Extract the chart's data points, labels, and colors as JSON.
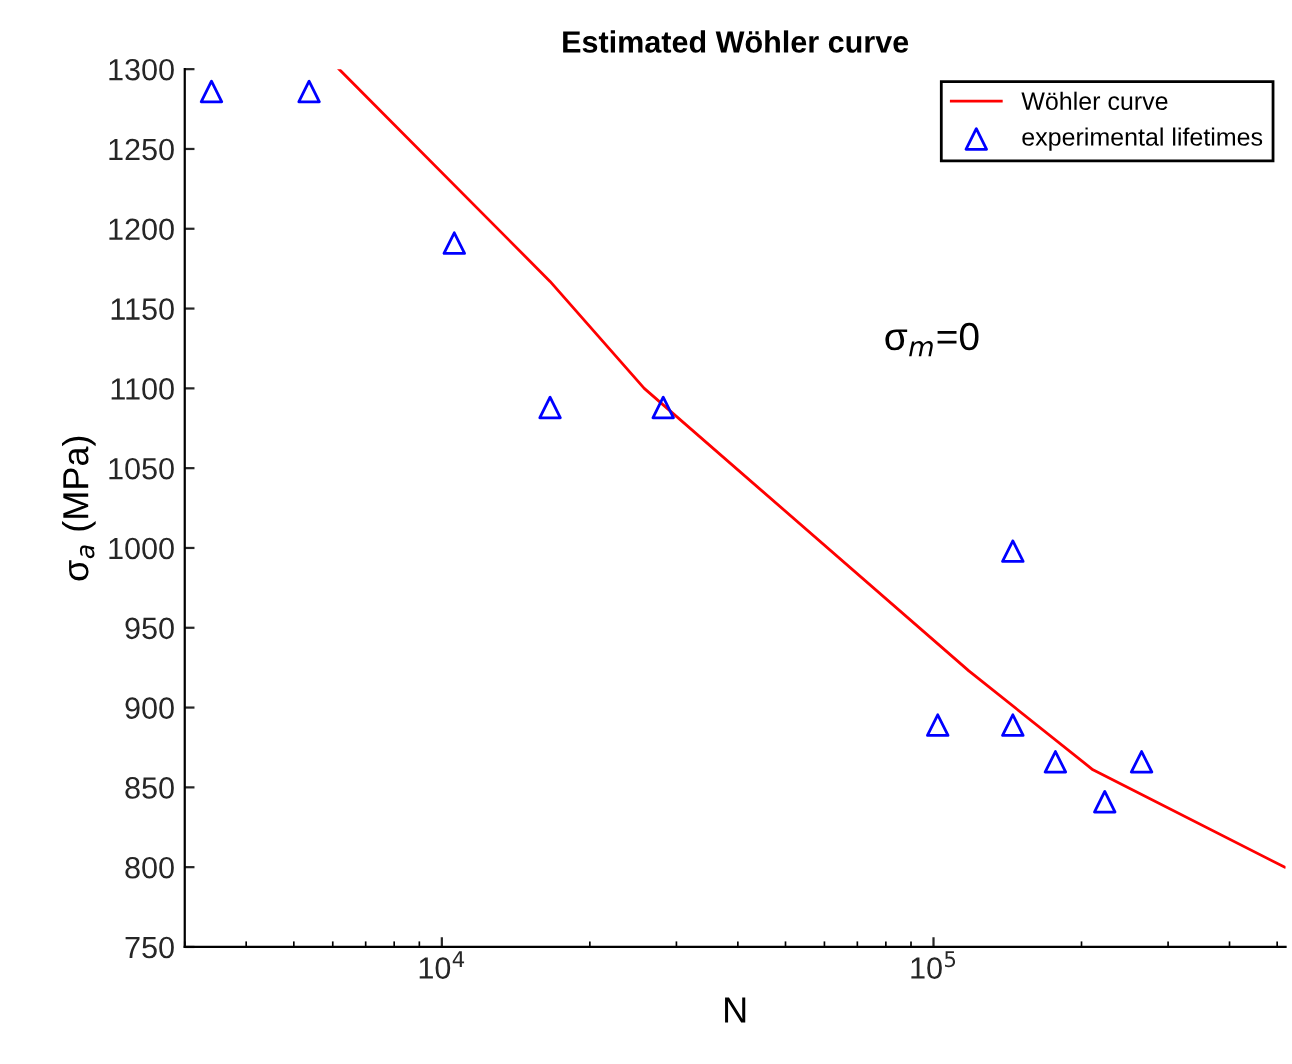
{
  "chart_data": {
    "type": "line",
    "title": "Estimated Wöhler curve",
    "xlabel": "N",
    "ylabel": "σ$_{a}$ (MPa)",
    "log": "x",
    "xlim": [
      3000,
      520000
    ],
    "xticks": [
      {
        "value": 10000,
        "label": "10$^{4}$"
      },
      {
        "value": 100000,
        "label": "10$^{5}$"
      }
    ],
    "ylim": [
      750,
      1300
    ],
    "yticks": [
      750,
      800,
      850,
      900,
      950,
      1000,
      1050,
      1100,
      1150,
      1200,
      1250,
      1300
    ],
    "grid": false,
    "legend": "top right",
    "annotations": [
      "σ$_{m}$=0"
    ],
    "series": [
      {
        "name": "Wöhler curve",
        "color": "#ff0000",
        "line_style": "solid",
        "marker": "none",
        "x": [
          6180,
          16600,
          25800,
          118000,
          211000,
          518000
        ],
        "values": [
          1300,
          1167,
          1100,
          923,
          861,
          800
        ]
      },
      {
        "name": "experimental lifetimes",
        "type": "scatter",
        "color": "#0000ff",
        "marker": "triangle",
        "x": [
          3400,
          5370,
          10600,
          16600,
          28200,
          145000,
          102000,
          145000,
          177000,
          223000,
          265000
        ],
        "values": [
          1286,
          1286,
          1191,
          1088,
          1088,
          998,
          889,
          889,
          866,
          841,
          866
        ]
      }
    ]
  }
}
